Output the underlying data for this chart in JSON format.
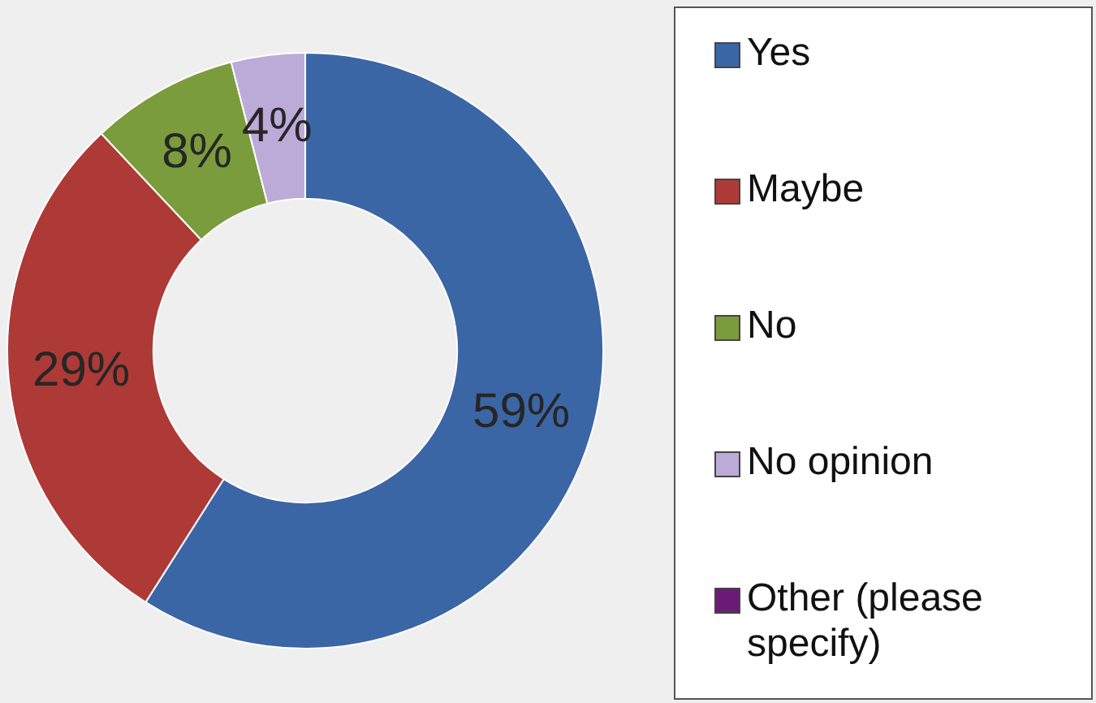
{
  "chart_data": {
    "type": "donut",
    "categories": [
      "Yes",
      "Maybe",
      "No",
      "No opinion",
      "Other (please specify)"
    ],
    "values": [
      59,
      29,
      8,
      4,
      0
    ],
    "colors": [
      "#3b66a6",
      "#ad3a36",
      "#7b9c3c",
      "#bcaad8",
      "#6b1a78"
    ],
    "value_labels": [
      "59%",
      "29%",
      "8%",
      "4%",
      null
    ],
    "legend": "right"
  }
}
